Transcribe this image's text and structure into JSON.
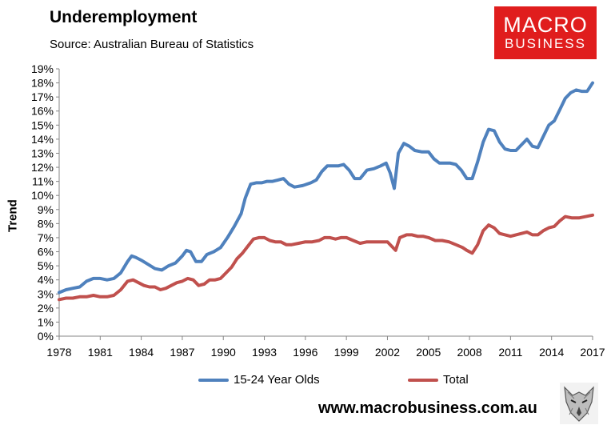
{
  "header": {
    "title": "Underemployment",
    "subtitle": "Source: Australian Bureau of Statistics"
  },
  "logo": {
    "line1": "MACRO",
    "line2": "BUSINESS",
    "color": "#e01d1d"
  },
  "footer": {
    "site": "www.macrobusiness.com.au",
    "mascot_icon": "wolf-icon"
  },
  "chart_data": {
    "type": "line",
    "title": "",
    "xlabel": "",
    "ylabel": "Trend",
    "xlim": [
      1978,
      2017
    ],
    "ylim": [
      0,
      19
    ],
    "y_ticks": [
      0,
      1,
      2,
      3,
      4,
      5,
      6,
      7,
      8,
      9,
      10,
      11,
      12,
      13,
      14,
      15,
      16,
      17,
      18,
      19
    ],
    "y_tick_suffix": "%",
    "x_ticks": [
      1978,
      1981,
      1984,
      1987,
      1990,
      1993,
      1996,
      1999,
      2002,
      2005,
      2008,
      2011,
      2014,
      2017
    ],
    "grid": false,
    "legend": "bottom",
    "series": [
      {
        "name": "15-24 Year Olds",
        "color": "#4f81bd",
        "points": [
          [
            1978,
            3.1
          ],
          [
            1978.5,
            3.3
          ],
          [
            1979,
            3.4
          ],
          [
            1979.5,
            3.5
          ],
          [
            1980,
            3.9
          ],
          [
            1980.5,
            4.1
          ],
          [
            1981,
            4.1
          ],
          [
            1981.5,
            4.0
          ],
          [
            1982,
            4.1
          ],
          [
            1982.5,
            4.5
          ],
          [
            1983,
            5.3
          ],
          [
            1983.3,
            5.7
          ],
          [
            1983.6,
            5.6
          ],
          [
            1984,
            5.4
          ],
          [
            1984.5,
            5.1
          ],
          [
            1985,
            4.8
          ],
          [
            1985.5,
            4.7
          ],
          [
            1986,
            5.0
          ],
          [
            1986.5,
            5.2
          ],
          [
            1987,
            5.7
          ],
          [
            1987.3,
            6.1
          ],
          [
            1987.6,
            6.0
          ],
          [
            1988,
            5.3
          ],
          [
            1988.4,
            5.3
          ],
          [
            1988.8,
            5.8
          ],
          [
            1989.3,
            6.0
          ],
          [
            1989.8,
            6.3
          ],
          [
            1990.3,
            7.0
          ],
          [
            1990.8,
            7.8
          ],
          [
            1991.3,
            8.7
          ],
          [
            1991.6,
            9.8
          ],
          [
            1992,
            10.8
          ],
          [
            1992.4,
            10.9
          ],
          [
            1992.8,
            10.9
          ],
          [
            1993.2,
            11.0
          ],
          [
            1993.6,
            11.0
          ],
          [
            1994,
            11.1
          ],
          [
            1994.4,
            11.2
          ],
          [
            1994.8,
            10.8
          ],
          [
            1995.2,
            10.6
          ],
          [
            1995.8,
            10.7
          ],
          [
            1996.4,
            10.9
          ],
          [
            1996.8,
            11.1
          ],
          [
            1997.2,
            11.7
          ],
          [
            1997.6,
            12.1
          ],
          [
            1998,
            12.1
          ],
          [
            1998.4,
            12.1
          ],
          [
            1998.8,
            12.2
          ],
          [
            1999.2,
            11.8
          ],
          [
            1999.6,
            11.2
          ],
          [
            2000,
            11.2
          ],
          [
            2000.5,
            11.8
          ],
          [
            2001,
            11.9
          ],
          [
            2001.5,
            12.1
          ],
          [
            2001.9,
            12.3
          ],
          [
            2002.2,
            11.6
          ],
          [
            2002.5,
            10.5
          ],
          [
            2002.8,
            13.0
          ],
          [
            2003.2,
            13.7
          ],
          [
            2003.6,
            13.5
          ],
          [
            2004,
            13.2
          ],
          [
            2004.5,
            13.1
          ],
          [
            2005,
            13.1
          ],
          [
            2005.4,
            12.6
          ],
          [
            2005.8,
            12.3
          ],
          [
            2006.2,
            12.3
          ],
          [
            2006.6,
            12.3
          ],
          [
            2007,
            12.2
          ],
          [
            2007.4,
            11.8
          ],
          [
            2007.8,
            11.2
          ],
          [
            2008.2,
            11.2
          ],
          [
            2008.6,
            12.4
          ],
          [
            2009,
            13.8
          ],
          [
            2009.4,
            14.7
          ],
          [
            2009.8,
            14.6
          ],
          [
            2010.2,
            13.8
          ],
          [
            2010.6,
            13.3
          ],
          [
            2011,
            13.2
          ],
          [
            2011.4,
            13.2
          ],
          [
            2011.8,
            13.6
          ],
          [
            2012.2,
            14.0
          ],
          [
            2012.6,
            13.5
          ],
          [
            2013,
            13.4
          ],
          [
            2013.4,
            14.2
          ],
          [
            2013.8,
            15.0
          ],
          [
            2014.2,
            15.3
          ],
          [
            2014.6,
            16.1
          ],
          [
            2015,
            16.9
          ],
          [
            2015.4,
            17.3
          ],
          [
            2015.8,
            17.5
          ],
          [
            2016.2,
            17.4
          ],
          [
            2016.6,
            17.4
          ],
          [
            2017,
            18.0
          ]
        ]
      },
      {
        "name": "Total",
        "color": "#c0504d",
        "points": [
          [
            1978,
            2.6
          ],
          [
            1978.5,
            2.7
          ],
          [
            1979,
            2.7
          ],
          [
            1979.5,
            2.8
          ],
          [
            1980,
            2.8
          ],
          [
            1980.5,
            2.9
          ],
          [
            1981,
            2.8
          ],
          [
            1981.5,
            2.8
          ],
          [
            1982,
            2.9
          ],
          [
            1982.5,
            3.3
          ],
          [
            1983,
            3.9
          ],
          [
            1983.4,
            4.0
          ],
          [
            1983.8,
            3.8
          ],
          [
            1984.2,
            3.6
          ],
          [
            1984.6,
            3.5
          ],
          [
            1985,
            3.5
          ],
          [
            1985.4,
            3.3
          ],
          [
            1985.8,
            3.4
          ],
          [
            1986.2,
            3.6
          ],
          [
            1986.6,
            3.8
          ],
          [
            1987,
            3.9
          ],
          [
            1987.4,
            4.1
          ],
          [
            1987.8,
            4.0
          ],
          [
            1988.2,
            3.6
          ],
          [
            1988.6,
            3.7
          ],
          [
            1989,
            4.0
          ],
          [
            1989.4,
            4.0
          ],
          [
            1989.8,
            4.1
          ],
          [
            1990.2,
            4.5
          ],
          [
            1990.6,
            4.9
          ],
          [
            1991,
            5.5
          ],
          [
            1991.4,
            5.9
          ],
          [
            1991.8,
            6.4
          ],
          [
            1992.2,
            6.9
          ],
          [
            1992.6,
            7.0
          ],
          [
            1993,
            7.0
          ],
          [
            1993.4,
            6.8
          ],
          [
            1993.8,
            6.7
          ],
          [
            1994.2,
            6.7
          ],
          [
            1994.6,
            6.5
          ],
          [
            1995,
            6.5
          ],
          [
            1995.5,
            6.6
          ],
          [
            1996,
            6.7
          ],
          [
            1996.5,
            6.7
          ],
          [
            1997,
            6.8
          ],
          [
            1997.4,
            7.0
          ],
          [
            1997.8,
            7.0
          ],
          [
            1998.2,
            6.9
          ],
          [
            1998.6,
            7.0
          ],
          [
            1999,
            7.0
          ],
          [
            1999.5,
            6.8
          ],
          [
            2000,
            6.6
          ],
          [
            2000.5,
            6.7
          ],
          [
            2001,
            6.7
          ],
          [
            2001.5,
            6.7
          ],
          [
            2002,
            6.7
          ],
          [
            2002.3,
            6.4
          ],
          [
            2002.6,
            6.1
          ],
          [
            2002.9,
            7.0
          ],
          [
            2003.4,
            7.2
          ],
          [
            2003.8,
            7.2
          ],
          [
            2004.2,
            7.1
          ],
          [
            2004.6,
            7.1
          ],
          [
            2005,
            7.0
          ],
          [
            2005.5,
            6.8
          ],
          [
            2006,
            6.8
          ],
          [
            2006.5,
            6.7
          ],
          [
            2007,
            6.5
          ],
          [
            2007.5,
            6.3
          ],
          [
            2007.8,
            6.1
          ],
          [
            2008.2,
            5.9
          ],
          [
            2008.6,
            6.5
          ],
          [
            2009,
            7.5
          ],
          [
            2009.4,
            7.9
          ],
          [
            2009.8,
            7.7
          ],
          [
            2010.2,
            7.3
          ],
          [
            2010.6,
            7.2
          ],
          [
            2011,
            7.1
          ],
          [
            2011.4,
            7.2
          ],
          [
            2011.8,
            7.3
          ],
          [
            2012.2,
            7.4
          ],
          [
            2012.6,
            7.2
          ],
          [
            2013,
            7.2
          ],
          [
            2013.4,
            7.5
          ],
          [
            2013.8,
            7.7
          ],
          [
            2014.2,
            7.8
          ],
          [
            2014.6,
            8.2
          ],
          [
            2015,
            8.5
          ],
          [
            2015.5,
            8.4
          ],
          [
            2016,
            8.4
          ],
          [
            2016.5,
            8.5
          ],
          [
            2017,
            8.6
          ]
        ]
      }
    ]
  }
}
